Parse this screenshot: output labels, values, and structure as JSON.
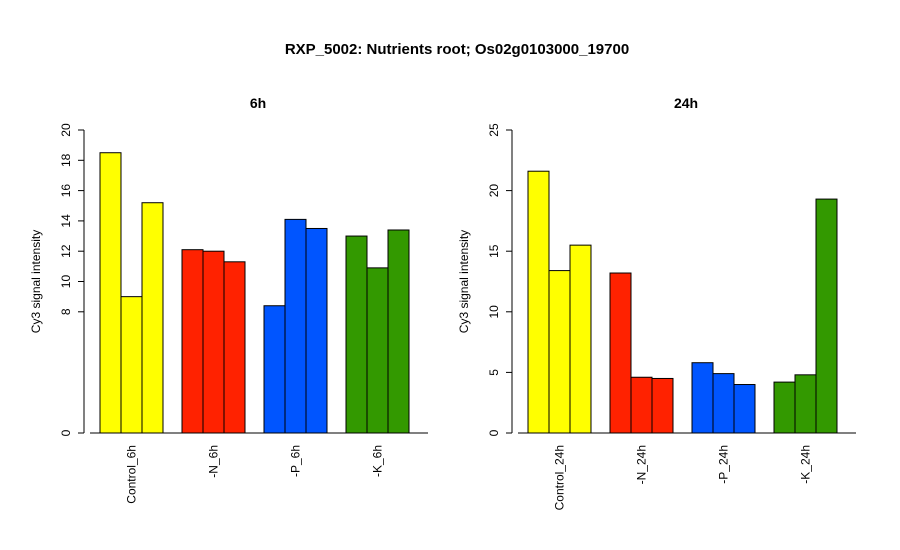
{
  "chart_data": {
    "title": "RXP_5002: Nutrients root; Os02g0103000_19700",
    "panels": [
      {
        "type": "bar",
        "title": "6h",
        "ylabel": "Cy3 signal intensity",
        "ylim": [
          0,
          20
        ],
        "yticks": [
          "0",
          "8",
          "10",
          "12",
          "14",
          "16",
          "18",
          "20"
        ],
        "ytick_values": [
          0,
          8,
          10,
          12,
          14,
          16,
          18,
          20
        ],
        "categories": [
          "Control_6h",
          "-N_6h",
          "-P_6h",
          "-K_6h"
        ],
        "colors": [
          "#ffff00",
          "#ff2200",
          "#0055ff",
          "#339900"
        ],
        "groups": [
          [
            18.5,
            9.0,
            15.2
          ],
          [
            12.1,
            12.0,
            11.3
          ],
          [
            8.4,
            14.1,
            13.5
          ],
          [
            13.0,
            10.9,
            13.4
          ]
        ]
      },
      {
        "type": "bar",
        "title": "24h",
        "ylabel": "Cy3 signal intensity",
        "ylim": [
          0,
          25
        ],
        "yticks": [
          "0",
          "5",
          "10",
          "15",
          "20",
          "25"
        ],
        "ytick_values": [
          0,
          5,
          10,
          15,
          20,
          25
        ],
        "categories": [
          "Control_24h",
          "-N_24h",
          "-P_24h",
          "-K_24h"
        ],
        "colors": [
          "#ffff00",
          "#ff2200",
          "#0055ff",
          "#339900"
        ],
        "groups": [
          [
            21.6,
            13.4,
            15.5
          ],
          [
            13.2,
            4.6,
            4.5
          ],
          [
            5.8,
            4.9,
            4.0
          ],
          [
            4.2,
            4.8,
            19.3
          ]
        ]
      }
    ]
  }
}
